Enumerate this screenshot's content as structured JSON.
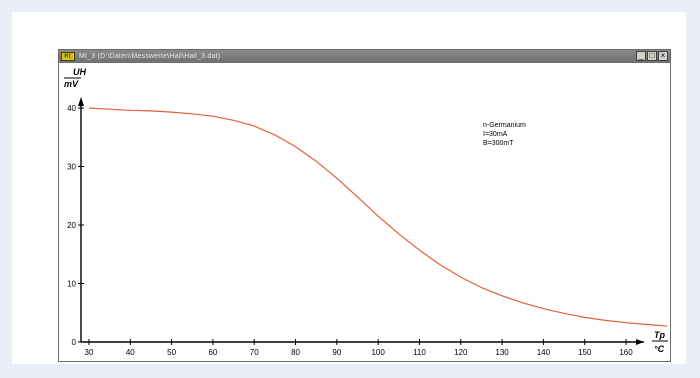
{
  "window": {
    "title": "Mt_3 (D:\\Daten\\Messwerte\\Hall\\Hall_3.dat)",
    "icon_label": "Mt",
    "buttons": {
      "minimize": "_",
      "maximize": "□",
      "close": "×"
    }
  },
  "chart_data": {
    "type": "line",
    "title": "",
    "ylabel_top": "UH",
    "ylabel_unit": "mV",
    "xlabel_top": "Tp",
    "xlabel_unit": "°C",
    "xlim": [
      30,
      172
    ],
    "ylim": [
      0,
      42
    ],
    "xticks": [
      30,
      40,
      50,
      60,
      70,
      80,
      90,
      100,
      110,
      120,
      130,
      140,
      150,
      160
    ],
    "yticks": [
      0,
      10,
      20,
      30,
      40
    ],
    "grid": false,
    "legend": [
      "n-Germanium",
      "I=30mA",
      "B=300mT"
    ],
    "series": [
      {
        "color": "#e0603a",
        "x": [
          30,
          35,
          40,
          45,
          50,
          55,
          60,
          65,
          70,
          75,
          80,
          85,
          90,
          95,
          100,
          105,
          110,
          115,
          120,
          125,
          130,
          135,
          140,
          145,
          150,
          155,
          160,
          165,
          170
        ],
        "y": [
          40.0,
          39.8,
          39.6,
          39.5,
          39.3,
          39.0,
          38.6,
          37.9,
          36.9,
          35.4,
          33.4,
          30.9,
          28.0,
          24.8,
          21.5,
          18.5,
          15.7,
          13.2,
          11.1,
          9.3,
          7.9,
          6.7,
          5.7,
          4.9,
          4.2,
          3.7,
          3.3,
          3.0,
          2.7
        ]
      }
    ]
  }
}
